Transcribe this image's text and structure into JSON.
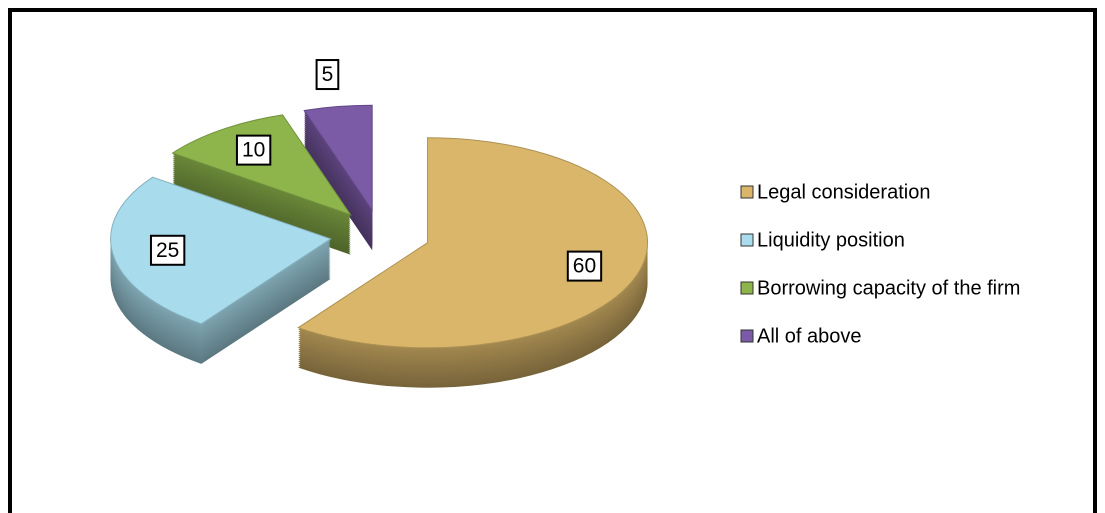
{
  "chart_data": {
    "type": "pie",
    "categories": [
      "Legal consideration",
      "Liquidity position",
      "Borrowing capacity of the firm",
      "All of above"
    ],
    "values": [
      60,
      25,
      10,
      5
    ],
    "colors": [
      "#d9b66a",
      "#a8dcec",
      "#8db54c",
      "#7b5aa6"
    ],
    "legend": "right",
    "three_d": true,
    "exploded": true
  }
}
